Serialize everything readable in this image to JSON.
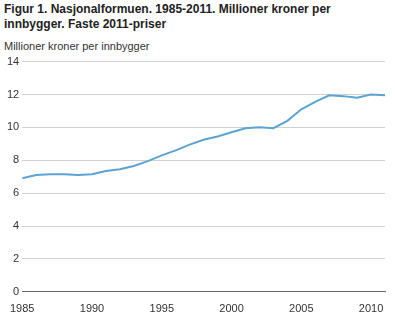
{
  "chart_data": {
    "type": "line",
    "title": "Figur 1. Nasjonalformuen. 1985-2011. Millioner kroner per innbygger. Faste 2011-priser",
    "y_label": "Millioner kroner per innbygger",
    "x": [
      1985,
      1986,
      1987,
      1988,
      1989,
      1990,
      1991,
      1992,
      1993,
      1994,
      1995,
      1996,
      1997,
      1998,
      1999,
      2000,
      2001,
      2002,
      2003,
      2004,
      2005,
      2006,
      2007,
      2008,
      2009,
      2010,
      2011
    ],
    "values": [
      6.9,
      7.1,
      7.15,
      7.15,
      7.1,
      7.15,
      7.35,
      7.45,
      7.65,
      7.95,
      8.3,
      8.6,
      8.95,
      9.25,
      9.45,
      9.7,
      9.95,
      10.0,
      9.95,
      10.4,
      11.1,
      11.55,
      11.95,
      11.9,
      11.8,
      12.0,
      11.95
    ],
    "color": "#5ba3d0",
    "xlim": [
      1985,
      2011
    ],
    "xticks": [
      1985,
      1990,
      1995,
      2000,
      2005,
      2010
    ],
    "ylim": [
      0,
      14
    ],
    "yticks": [
      0,
      2,
      4,
      6,
      8,
      10,
      12,
      14
    ],
    "grid": true
  }
}
